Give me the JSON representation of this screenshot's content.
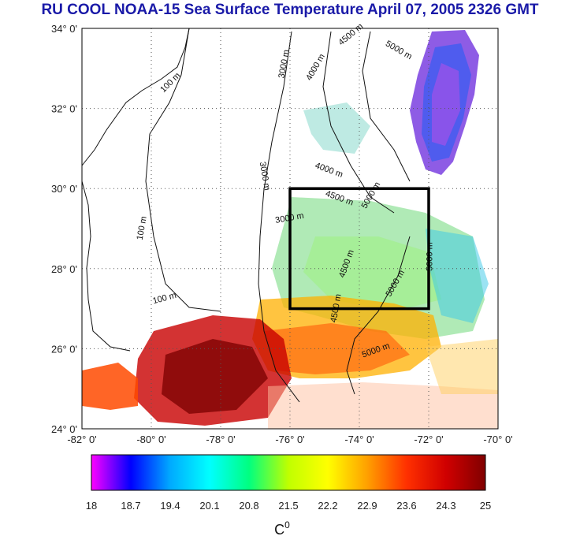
{
  "title": "RU COOL  NOAA-15 Sea Surface Temperature April 07, 2005 2326 GMT",
  "map": {
    "lon_range": [
      -82,
      -70
    ],
    "lat_range": [
      24,
      34
    ],
    "lat_ticks": [
      {
        "value": 34,
        "label": "34° 0'"
      },
      {
        "value": 32,
        "label": "32° 0'"
      },
      {
        "value": 30,
        "label": "30° 0'"
      },
      {
        "value": 28,
        "label": "28° 0'"
      },
      {
        "value": 26,
        "label": "26° 0'"
      },
      {
        "value": 24,
        "label": "24° 0'"
      }
    ],
    "lon_ticks": [
      {
        "value": -82,
        "label": "-82° 0'"
      },
      {
        "value": -80,
        "label": "-80° 0'"
      },
      {
        "value": -78,
        "label": "-78° 0'"
      },
      {
        "value": -76,
        "label": "-76° 0'"
      },
      {
        "value": -74,
        "label": "-74° 0'"
      },
      {
        "value": -72,
        "label": "-72° 0'"
      },
      {
        "value": -70,
        "label": "-70° 0'"
      }
    ],
    "study_box": {
      "lon_min": -76,
      "lon_max": -72,
      "lat_min": 27,
      "lat_max": 30
    },
    "contour_labels": [
      {
        "text": "100 m",
        "lon": -79.4,
        "lat": 32.6,
        "rot": -45
      },
      {
        "text": "100 m",
        "lon": -80.2,
        "lat": 29.0,
        "rot": -80
      },
      {
        "text": "100 m",
        "lon": -79.6,
        "lat": 27.2,
        "rot": -15
      },
      {
        "text": "3000 m",
        "lon": -76.1,
        "lat": 33.1,
        "rot": -80
      },
      {
        "text": "4000 m",
        "lon": -75.2,
        "lat": 33.0,
        "rot": -60
      },
      {
        "text": "4500 m",
        "lon": -74.2,
        "lat": 33.8,
        "rot": -40
      },
      {
        "text": "5000 m",
        "lon": -72.9,
        "lat": 33.4,
        "rot": 30
      },
      {
        "text": "3000 m",
        "lon": -76.8,
        "lat": 30.3,
        "rot": 80
      },
      {
        "text": "4000 m",
        "lon": -74.9,
        "lat": 30.4,
        "rot": 20
      },
      {
        "text": "4500 m",
        "lon": -74.6,
        "lat": 29.7,
        "rot": 20
      },
      {
        "text": "5000 m",
        "lon": -73.6,
        "lat": 29.8,
        "rot": -60
      },
      {
        "text": "3000 m",
        "lon": -76.0,
        "lat": 29.2,
        "rot": -10
      },
      {
        "text": "4500 m",
        "lon": -74.3,
        "lat": 28.1,
        "rot": -70
      },
      {
        "text": "5000 m",
        "lon": -72.9,
        "lat": 27.6,
        "rot": -60
      },
      {
        "text": "5000 m",
        "lon": -71.9,
        "lat": 28.3,
        "rot": -90
      },
      {
        "text": "4500 m",
        "lon": -74.6,
        "lat": 27.0,
        "rot": -80
      },
      {
        "text": "5000 m",
        "lon": -73.5,
        "lat": 25.9,
        "rot": -20
      }
    ],
    "colors": {
      "land_outline": "#111111",
      "grid": "#555555",
      "box": "#000000"
    }
  },
  "colorbar": {
    "min": 18,
    "max": 25,
    "tick_labels": [
      "18",
      "18.7",
      "19.4",
      "20.1",
      "20.8",
      "21.5",
      "22.2",
      "22.9",
      "23.6",
      "24.3",
      "25"
    ],
    "unit": "C",
    "unit_superscript": "0",
    "stops": [
      "#ff00ff",
      "#0000ff",
      "#00aaff",
      "#00ffff",
      "#00ff80",
      "#c0ff00",
      "#ffff00",
      "#ffa000",
      "#ff3000",
      "#d00000",
      "#800000"
    ]
  }
}
